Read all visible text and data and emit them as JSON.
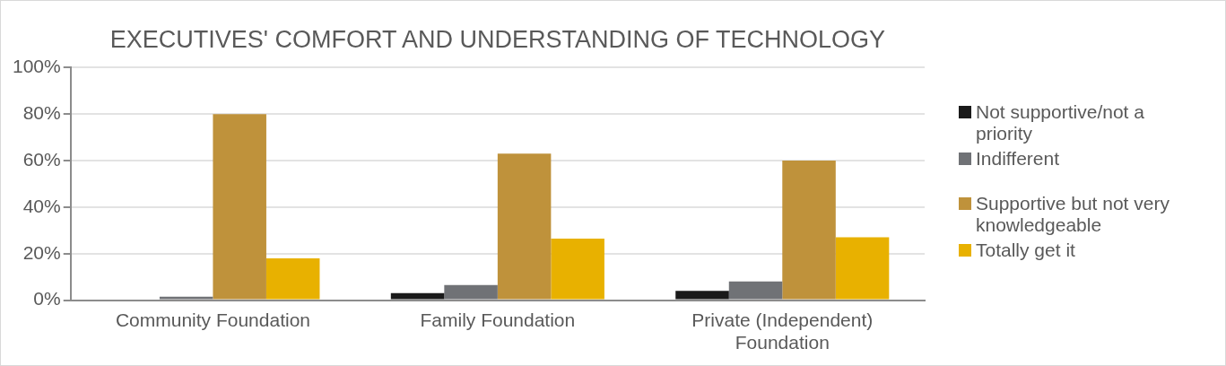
{
  "chart_data": {
    "type": "bar",
    "title": "EXECUTIVES' COMFORT AND UNDERSTANDING OF TECHNOLOGY",
    "categories": [
      "Community Foundation",
      "Family Foundation",
      "Private (Independent) Foundation"
    ],
    "series": [
      {
        "name": "Not supportive/not a priority",
        "color": "#1a1a1a",
        "values": [
          0,
          3,
          4
        ]
      },
      {
        "name": "Indifferent",
        "color": "#707276",
        "values": [
          1.5,
          6.5,
          8
        ]
      },
      {
        "name": "Supportive but not very knowledgeable",
        "color": "#bf923b",
        "values": [
          80,
          63,
          60
        ]
      },
      {
        "name": "Totally get it",
        "color": "#e8b100",
        "values": [
          18,
          26.5,
          27
        ]
      }
    ],
    "ylim": [
      0,
      100
    ],
    "yticks": [
      {
        "value": 0,
        "label": "0%"
      },
      {
        "value": 20,
        "label": "20%"
      },
      {
        "value": 40,
        "label": "40%"
      },
      {
        "value": 60,
        "label": "60%"
      },
      {
        "value": 80,
        "label": "80%"
      },
      {
        "value": 100,
        "label": "100%"
      }
    ],
    "grid": "y",
    "legend": "right"
  }
}
